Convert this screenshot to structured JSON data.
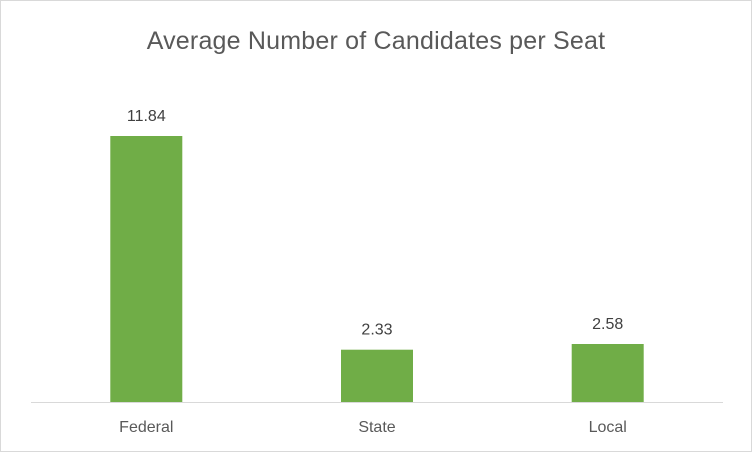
{
  "chart_data": {
    "type": "bar",
    "title": "Average Number of Candidates per Seat",
    "categories": [
      "Federal",
      "State",
      "Local"
    ],
    "values": [
      11.84,
      2.33,
      2.58
    ],
    "data_labels": [
      "11.84",
      "2.33",
      "2.58"
    ],
    "xlabel": "",
    "ylabel": "",
    "ylim": [
      0,
      14
    ],
    "grid": false,
    "legend": "none",
    "bar_color": "#70ad47",
    "axis_color": "#d9d9d9"
  }
}
